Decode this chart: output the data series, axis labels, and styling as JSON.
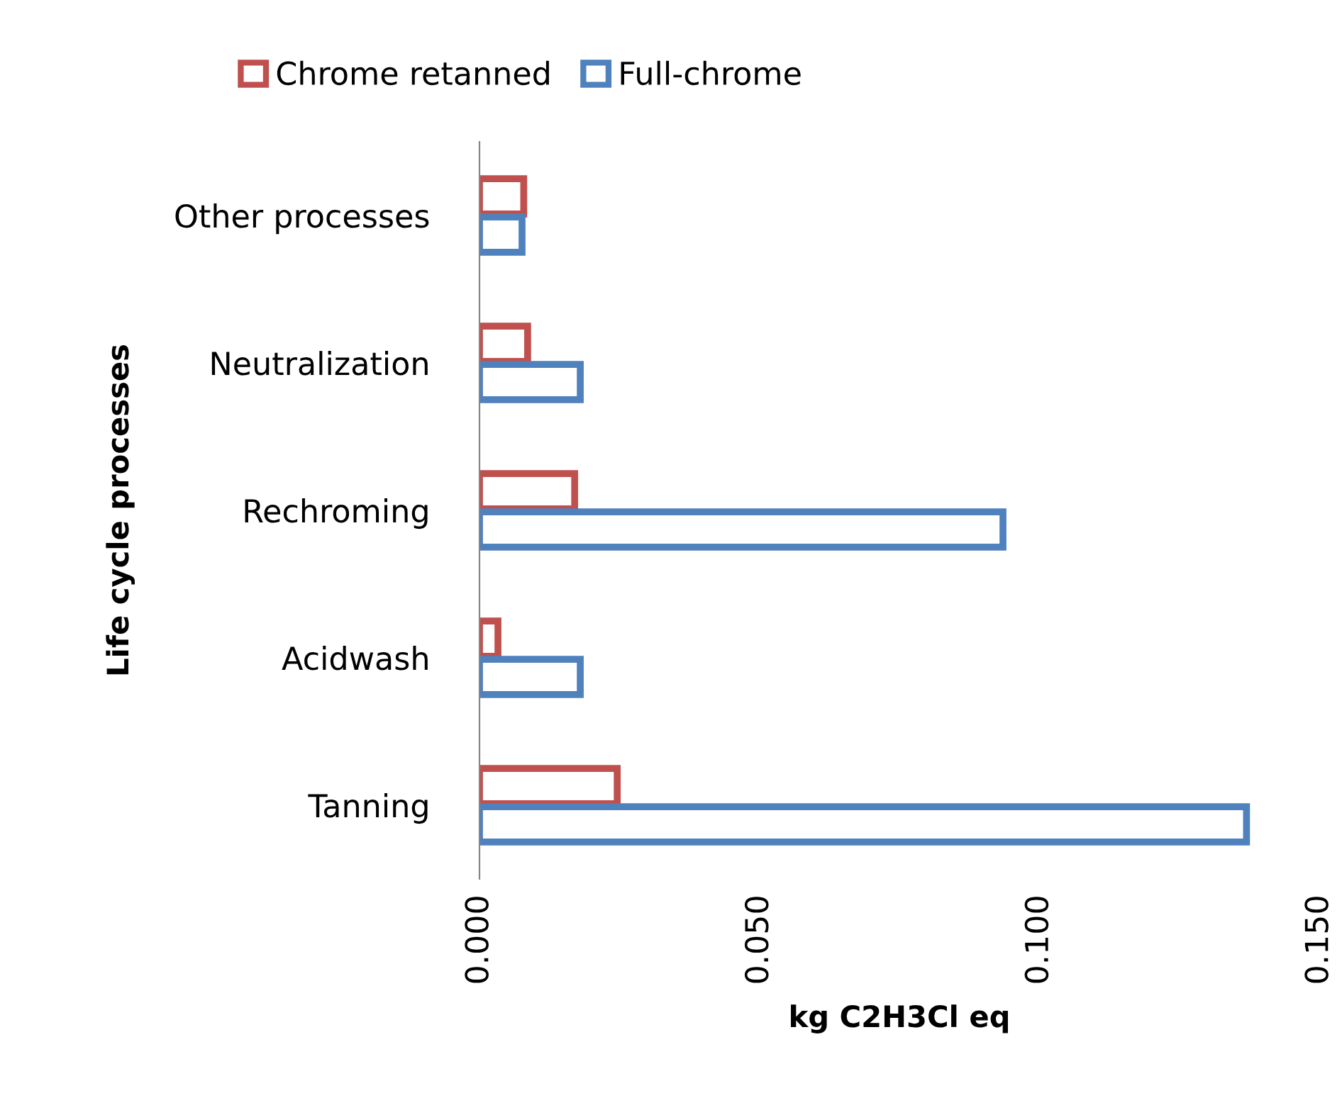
{
  "chart_data": {
    "type": "bar",
    "orientation": "horizontal",
    "xlabel": "kg C2H3Cl eq",
    "ylabel": "Life cycle processes",
    "categories": [
      "Other processes",
      "Neutralization",
      "Rechroming",
      "Acidwash",
      "Tanning"
    ],
    "series": [
      {
        "name": "Chrome retanned",
        "color": "#c0504d",
        "values": [
          0.0079,
          0.0086,
          0.017,
          0.0033,
          0.0246
        ]
      },
      {
        "name": "Full-chrome",
        "color": "#4f81bd",
        "values": [
          0.0076,
          0.018,
          0.0935,
          0.018,
          0.137
        ]
      }
    ],
    "xlim": [
      0,
      0.15
    ],
    "xticks": [
      {
        "value": 0,
        "label": "0.000"
      },
      {
        "value": 0.05,
        "label": "0.050"
      },
      {
        "value": 0.1,
        "label": "0.100"
      },
      {
        "value": 0.15,
        "label": "0.150"
      }
    ],
    "grid": false,
    "legend": "top"
  }
}
